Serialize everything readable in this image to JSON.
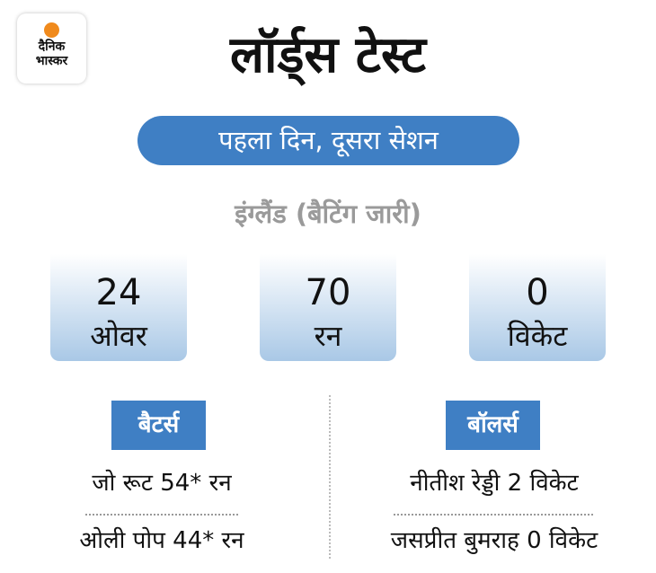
{
  "logo": {
    "line1": "दैनिक",
    "line2": "भास्कर",
    "accent_color": "#f08a1c"
  },
  "title": "लॉर्ड्स टेस्ट",
  "session": "पहला दिन, दूसरा सेशन",
  "team_status": "इंग्लैंड (बैटिंग जारी)",
  "stats": [
    {
      "value": "24",
      "label": "ओवर"
    },
    {
      "value": "70",
      "label": "रन"
    },
    {
      "value": "0",
      "label": "विकेट"
    }
  ],
  "batters": {
    "heading": "बैटर्स",
    "rows": [
      "जो रूट 54* रन",
      "ओली पोप 44* रन"
    ]
  },
  "bowlers": {
    "heading": "बॉलर्स",
    "rows": [
      "नीतीश रेड्डी 2 विकेट",
      "जसप्रीत बुमराह 0 विकेट"
    ]
  },
  "colors": {
    "accent": "#3f7fc4",
    "muted": "#9a9a9a"
  }
}
